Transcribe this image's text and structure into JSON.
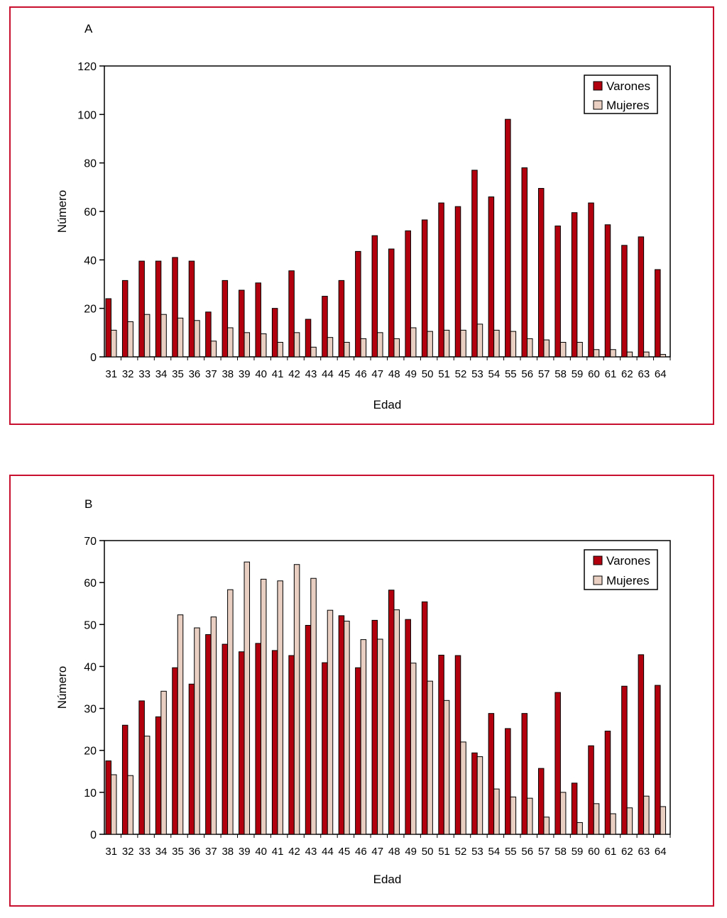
{
  "chart_data": [
    {
      "panel_label": "A",
      "type": "bar",
      "xlabel": "Edad",
      "ylabel": "Número",
      "ylim": [
        0,
        120
      ],
      "yticks": [
        0,
        20,
        40,
        60,
        80,
        100,
        120
      ],
      "categories": [
        "31",
        "32",
        "33",
        "34",
        "35",
        "36",
        "37",
        "38",
        "39",
        "40",
        "41",
        "42",
        "43",
        "44",
        "45",
        "46",
        "47",
        "48",
        "49",
        "50",
        "51",
        "52",
        "53",
        "54",
        "55",
        "56",
        "57",
        "58",
        "59",
        "60",
        "61",
        "62",
        "63",
        "64"
      ],
      "series": [
        {
          "name": "Varones",
          "color": "#b3000f",
          "values": [
            24,
            31.5,
            39.5,
            39.5,
            41,
            39.5,
            18.5,
            31.5,
            27.5,
            30.5,
            20,
            35.5,
            15.5,
            25,
            31.5,
            43.5,
            50,
            44.5,
            52,
            56.5,
            63.5,
            62,
            77,
            66,
            98,
            78,
            69.5,
            54,
            59.5,
            63.5,
            54.5,
            46,
            49.5,
            36
          ]
        },
        {
          "name": "Mujeres",
          "color": "#e8cfc2",
          "values": [
            11,
            14.5,
            17.5,
            17.5,
            16,
            15,
            6.5,
            12,
            10,
            9.5,
            6,
            10,
            4,
            8,
            6,
            7.5,
            10,
            7.5,
            12,
            10.5,
            11,
            11,
            13.5,
            11,
            10.5,
            7.5,
            7,
            6,
            6,
            3,
            3,
            2,
            2,
            1
          ]
        }
      ],
      "legend_position": "top-right",
      "grid": false
    },
    {
      "panel_label": "B",
      "type": "bar",
      "xlabel": "Edad",
      "ylabel": "Número",
      "ylim": [
        0,
        70
      ],
      "yticks": [
        0,
        10,
        20,
        30,
        40,
        50,
        60,
        70
      ],
      "categories": [
        "31",
        "32",
        "33",
        "34",
        "35",
        "36",
        "37",
        "38",
        "39",
        "40",
        "41",
        "42",
        "43",
        "44",
        "45",
        "46",
        "47",
        "48",
        "49",
        "50",
        "51",
        "52",
        "53",
        "54",
        "55",
        "56",
        "57",
        "58",
        "59",
        "60",
        "61",
        "62",
        "63",
        "64"
      ],
      "series": [
        {
          "name": "Varones",
          "color": "#b3000f",
          "values": [
            17.5,
            26,
            31.8,
            28,
            39.7,
            35.8,
            47.6,
            45.3,
            43.5,
            45.5,
            43.8,
            42.6,
            49.8,
            40.9,
            52.1,
            39.7,
            51,
            58.2,
            51.2,
            55.4,
            42.7,
            42.6,
            19.4,
            28.8,
            25.2,
            28.8,
            15.7,
            33.8,
            12.2,
            21.1,
            24.6,
            35.3,
            42.8,
            35.5
          ]
        },
        {
          "name": "Mujeres",
          "color": "#e8cfc2",
          "values": [
            14.2,
            14,
            23.4,
            34.1,
            52.3,
            49.2,
            51.8,
            58.3,
            64.9,
            60.8,
            60.4,
            64.3,
            61,
            53.4,
            50.8,
            46.4,
            46.5,
            53.5,
            40.8,
            36.5,
            31.9,
            22,
            18.5,
            10.8,
            8.9,
            8.6,
            4.1,
            10,
            2.8,
            7.3,
            4.9,
            6.3,
            9.1,
            6.6
          ]
        }
      ],
      "legend_position": "top-right",
      "grid": false
    }
  ]
}
